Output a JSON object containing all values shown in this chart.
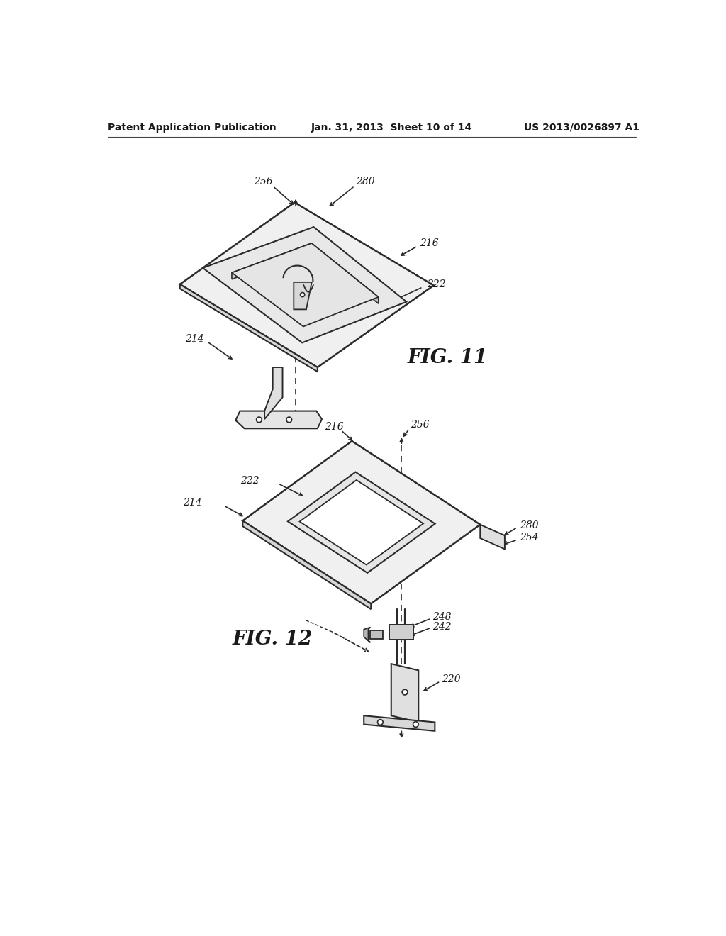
{
  "bg_color": "#ffffff",
  "line_color": "#2a2a2a",
  "text_color": "#1a1a1a",
  "header_left": "Patent Application Publication",
  "header_mid": "Jan. 31, 2013  Sheet 10 of 14",
  "header_right": "US 2013/0026897 A1",
  "fig11_label": "FIG. 11",
  "fig12_label": "FIG. 12",
  "lw_main": 1.6,
  "lw_thin": 1.2
}
